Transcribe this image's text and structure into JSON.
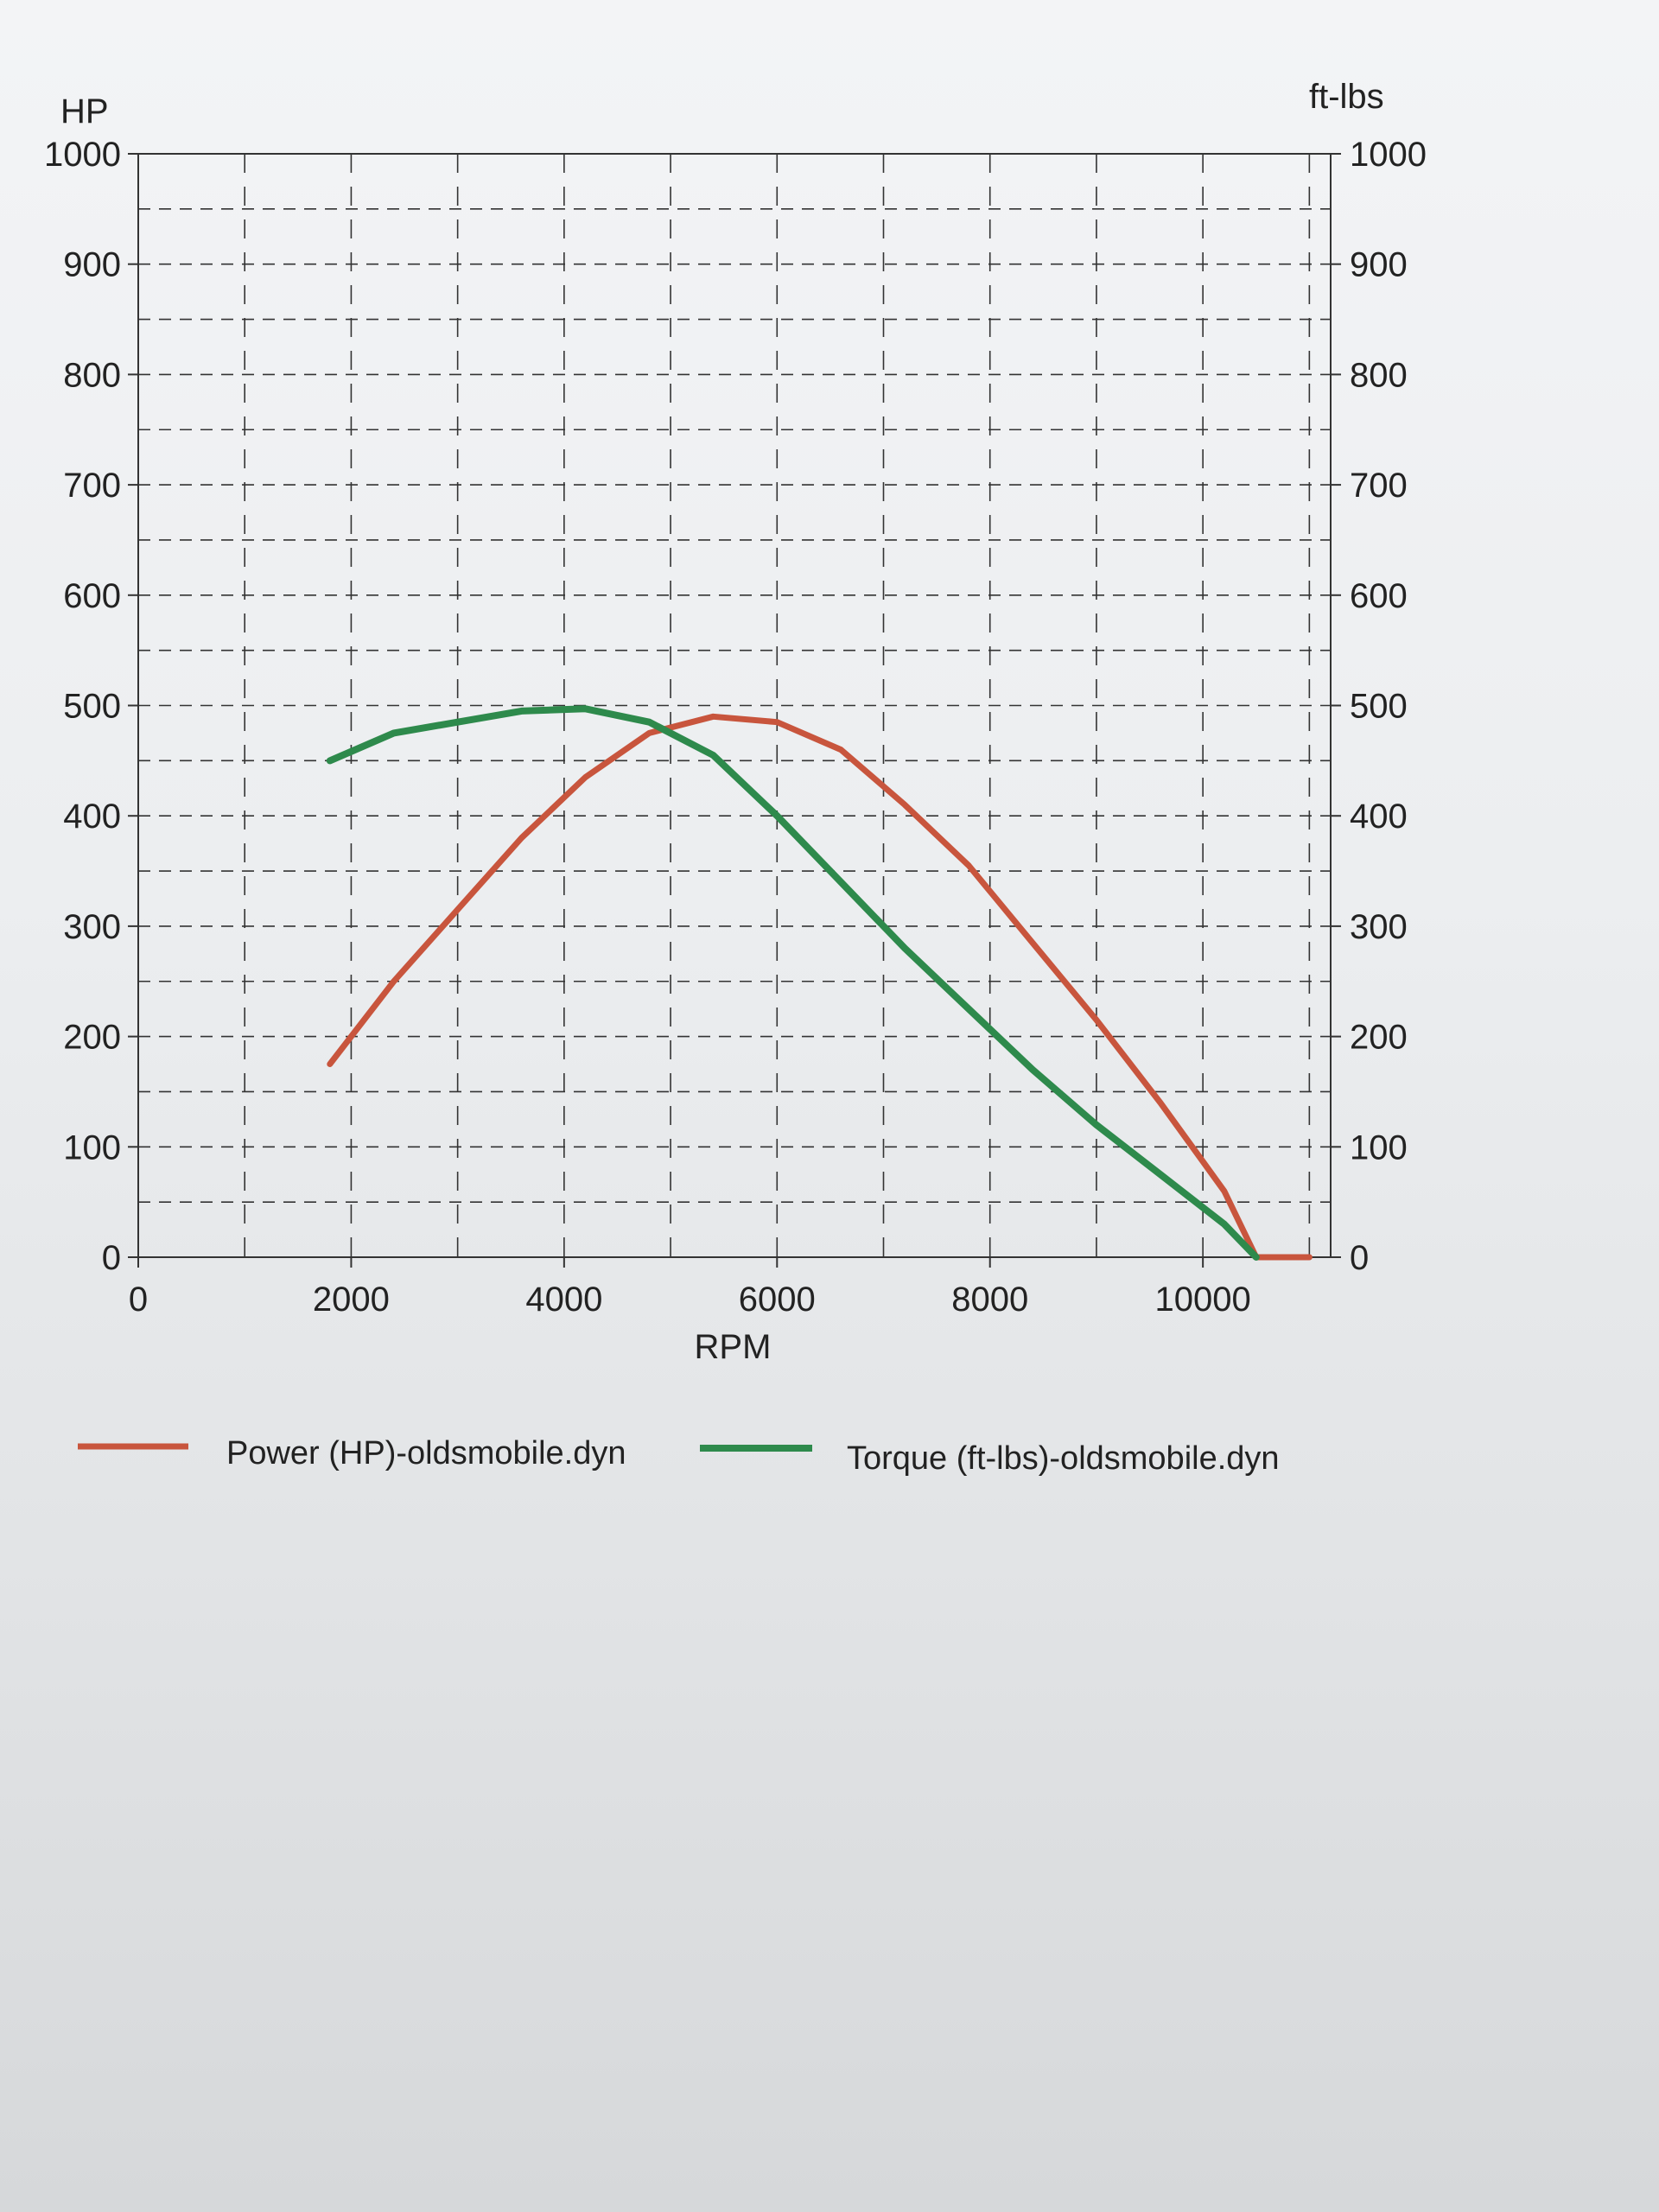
{
  "chart_data": {
    "type": "line",
    "xlabel": "RPM",
    "ylabel_left": "HP",
    "ylabel_right": "ft-lbs",
    "xlim": [
      0,
      11200
    ],
    "ylim": [
      0,
      1000
    ],
    "x_ticks": [
      0,
      2000,
      4000,
      6000,
      8000,
      10000
    ],
    "y_ticks_left": [
      0,
      100,
      200,
      300,
      400,
      500,
      600,
      700,
      800,
      900,
      1000
    ],
    "y_ticks_right": [
      0,
      100,
      200,
      300,
      400,
      500,
      600,
      700,
      800,
      900,
      1000
    ],
    "grid": true,
    "legend_position": "bottom",
    "colors": {
      "power": "#c8553d",
      "torque": "#2e8a4c",
      "grid": "#333333"
    },
    "series": [
      {
        "name": "Power (HP)-oldsmobile.dyn",
        "color": "#c8553d",
        "points": [
          [
            1800,
            175
          ],
          [
            2400,
            250
          ],
          [
            3000,
            315
          ],
          [
            3600,
            380
          ],
          [
            4200,
            435
          ],
          [
            4800,
            475
          ],
          [
            5400,
            490
          ],
          [
            6000,
            485
          ],
          [
            6600,
            460
          ],
          [
            7200,
            410
          ],
          [
            7800,
            355
          ],
          [
            8400,
            285
          ],
          [
            9000,
            215
          ],
          [
            9600,
            140
          ],
          [
            10200,
            60
          ],
          [
            10500,
            0
          ],
          [
            11000,
            0
          ]
        ]
      },
      {
        "name": "Torque (ft-lbs)-oldsmobile.dyn",
        "color": "#2e8a4c",
        "points": [
          [
            1800,
            450
          ],
          [
            2400,
            475
          ],
          [
            3000,
            485
          ],
          [
            3600,
            495
          ],
          [
            4200,
            497
          ],
          [
            4800,
            485
          ],
          [
            5400,
            455
          ],
          [
            6000,
            400
          ],
          [
            6600,
            340
          ],
          [
            7200,
            280
          ],
          [
            7800,
            225
          ],
          [
            8400,
            170
          ],
          [
            9000,
            120
          ],
          [
            9600,
            75
          ],
          [
            10200,
            30
          ],
          [
            10500,
            0
          ]
        ]
      }
    ]
  }
}
